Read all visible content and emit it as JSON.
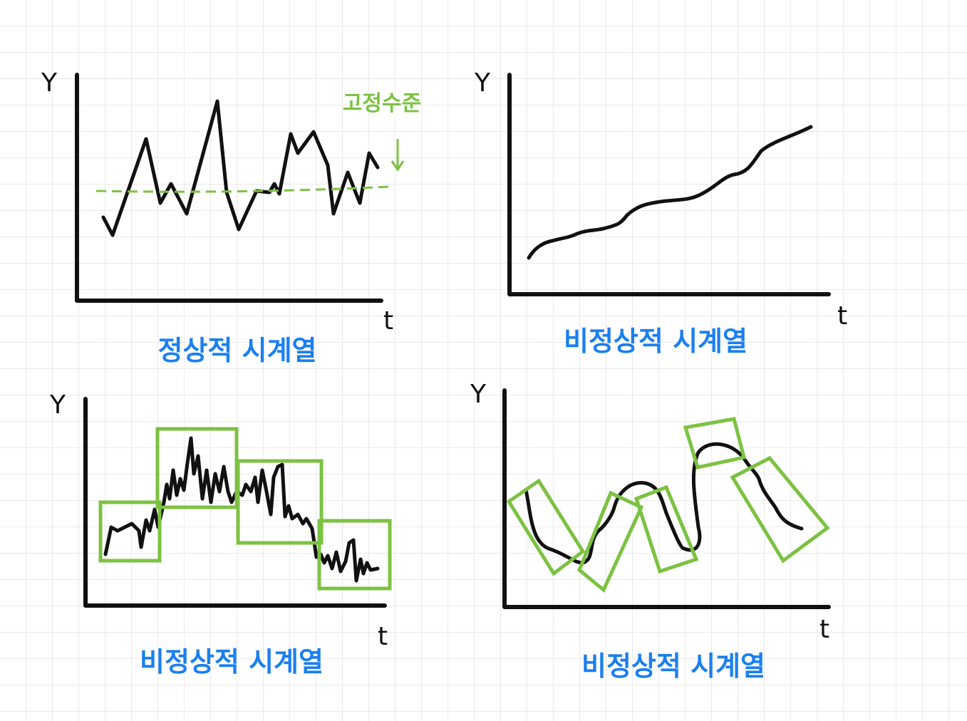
{
  "panels": [
    {
      "y_label": "Y",
      "x_label": "t",
      "caption": "정상적 시계열",
      "annotation": "고정수준"
    },
    {
      "y_label": "Y",
      "x_label": "t",
      "caption": "비정상적 시계열"
    },
    {
      "y_label": "Y",
      "x_label": "t",
      "caption": "비정상적 시계열"
    },
    {
      "y_label": "Y",
      "x_label": "t",
      "caption": "비정상적 시계열"
    }
  ]
}
